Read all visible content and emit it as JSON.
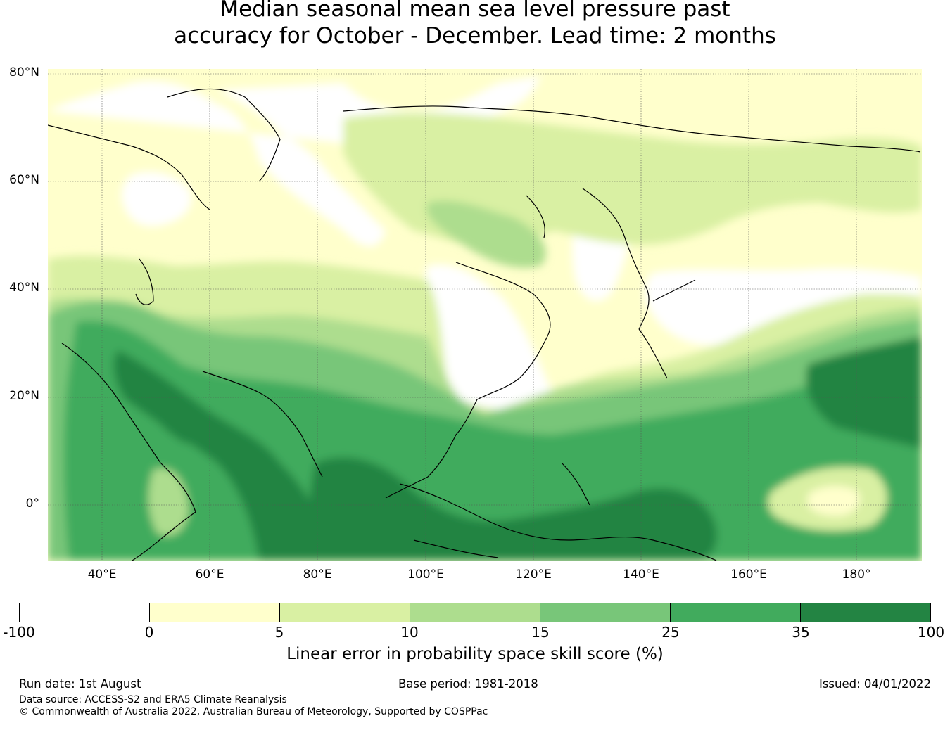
{
  "title": {
    "line1": "Median seasonal mean sea level pressure past",
    "line2": "accuracy for October - December. Lead time: 2 months"
  },
  "map": {
    "lat_labels": [
      "80°N",
      "60°N",
      "40°N",
      "20°N",
      "0°"
    ],
    "lon_labels": [
      "40°E",
      "60°E",
      "80°E",
      "100°E",
      "120°E",
      "140°E",
      "160°E",
      "180°"
    ],
    "lat_range": [
      -10,
      80
    ],
    "lon_range": [
      30,
      192
    ],
    "grid": true
  },
  "colorbar": {
    "ticks": [
      "-100",
      "0",
      "5",
      "10",
      "15",
      "25",
      "35",
      "100"
    ],
    "colors": [
      "#ffffff",
      "#ffffcc",
      "#d9f0a3",
      "#addd8e",
      "#78c679",
      "#41ab5d",
      "#238443"
    ],
    "label": "Linear error in probability space skill score (%)"
  },
  "footer": {
    "run_date": "Run date: 1st August",
    "base_period": "Base period: 1981-2018",
    "issued": "Issued: 04/01/2022",
    "data_source": "Data source: ACCESS-S2 and ERA5 Climate Reanalysis",
    "copyright": "© Commonwealth of Australia 2022, Australian Bureau of Meteorology, Supported by COSPPac"
  }
}
